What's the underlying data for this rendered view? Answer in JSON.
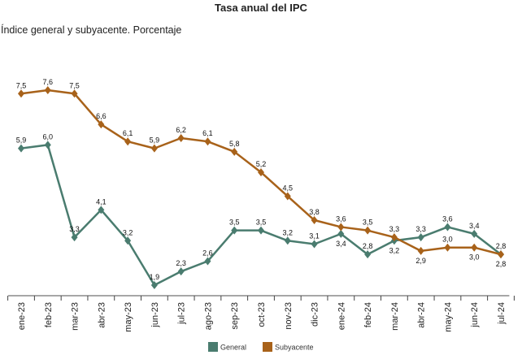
{
  "chart_data": {
    "type": "line",
    "title": "Tasa anual del IPC",
    "subtitle": "Índice general y subyacente. Porcentaje",
    "xlabel": "",
    "ylabel": "",
    "categories": [
      "ene-23",
      "feb-23",
      "mar-23",
      "abr-23",
      "may-23",
      "jun-23",
      "jul-23",
      "ago-23",
      "sep-23",
      "oct-23",
      "nov-23",
      "dic-23",
      "ene-24",
      "feb-24",
      "mar-24",
      "abr-24",
      "may-24",
      "jun-24",
      "jul-24"
    ],
    "series": [
      {
        "name": "General",
        "color": "#4a7c6f",
        "values": [
          5.9,
          6.0,
          3.3,
          4.1,
          3.2,
          1.9,
          2.3,
          2.6,
          3.5,
          3.5,
          3.2,
          3.1,
          3.4,
          2.8,
          3.2,
          3.3,
          3.6,
          3.4,
          2.8
        ]
      },
      {
        "name": "Subyacente",
        "color": "#a8621a",
        "values": [
          7.5,
          7.6,
          7.5,
          6.6,
          6.1,
          5.9,
          6.2,
          6.1,
          5.8,
          5.2,
          4.5,
          3.8,
          3.6,
          3.5,
          3.3,
          2.9,
          3.0,
          3.0,
          2.8
        ]
      }
    ],
    "labels_general": [
      "5,9",
      "6,0",
      "3,3",
      "4,1",
      "3,2",
      "1,9",
      "2,3",
      "2,6",
      "3,5",
      "3,5",
      "3,2",
      "3,1",
      "3,4",
      "2,8",
      "3,2",
      "3,3",
      "3,6",
      "3,4",
      "2,8"
    ],
    "labels_subyacente": [
      "7,5",
      "7,6",
      "7,5",
      "6,6",
      "6,1",
      "5,9",
      "6,2",
      "6,1",
      "5,8",
      "5,2",
      "4,5",
      "3,8",
      "3,6",
      "3,5",
      "3,3",
      "2,9",
      "3,0",
      "3,0",
      "2,8"
    ],
    "grid": false,
    "legend_position": "bottom-center"
  }
}
